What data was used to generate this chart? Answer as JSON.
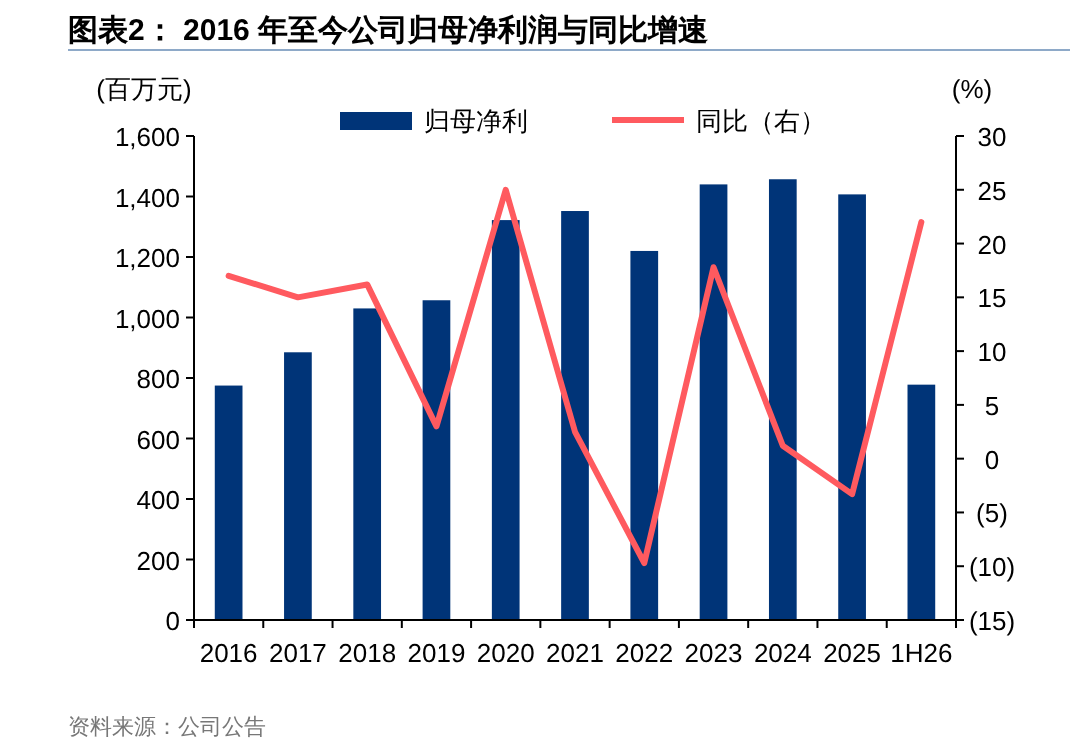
{
  "chart_data": {
    "type": "bar",
    "title": "图表2： 2016 年至今公司归母净利润与同比增速",
    "ylabel": "(百万元)",
    "y2label": "(%)",
    "annotations": [
      "资料来源：公司公告"
    ],
    "categories": [
      "2016",
      "2017",
      "2018",
      "2019",
      "2020",
      "2021",
      "2022",
      "2023",
      "2024",
      "2025",
      "1H26"
    ],
    "series": [
      {
        "name": "归母净利",
        "color": "#003478",
        "values": [
          775,
          885,
          1030,
          1057,
          1322,
          1352,
          1220,
          1440,
          1457,
          1407,
          778
        ]
      },
      {
        "name": "同比（右）",
        "type": "line",
        "axis": "y2",
        "color": "#ff5a5f",
        "values": [
          17,
          15,
          16.2,
          3,
          25,
          2.5,
          -9.7,
          17.8,
          1.2,
          -3.3,
          22
        ]
      }
    ],
    "ylim": [
      0,
      1600
    ],
    "yticks": [
      0,
      {
        "value": 200,
        "label": "200"
      },
      {
        "value": 400,
        "label": "400"
      },
      {
        "value": 600,
        "label": "600"
      },
      {
        "value": 800,
        "label": "800"
      },
      {
        "value": 1000,
        "label": "1,000"
      },
      {
        "value": 1200,
        "label": "1,200"
      },
      {
        "value": 1400,
        "label": "1,400"
      },
      {
        "value": 1600,
        "label": "1,600"
      }
    ],
    "y2lim": [
      -15,
      30
    ],
    "y2ticks": [
      {
        "value": -15,
        "label": "(15)"
      },
      {
        "value": -10,
        "label": "(10)"
      },
      {
        "value": -5,
        "label": "(5)"
      },
      0,
      5,
      10,
      15,
      20,
      25,
      30
    ],
    "grid": false,
    "legend": "top",
    "marker": "none",
    "line_style": "solid"
  }
}
